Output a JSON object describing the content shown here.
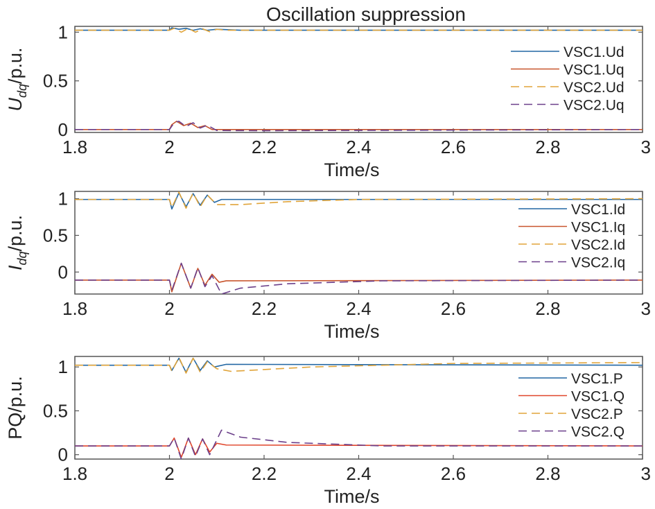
{
  "title": "Oscillation suppression",
  "colors": {
    "blue": "#2166a3",
    "orange": "#c8542c",
    "red": "#e0452a",
    "yellow": "#e0a43a",
    "purple": "#6b3f8a",
    "axis": "#555555"
  },
  "chart_data": [
    {
      "type": "line",
      "title": "Oscillation suppression",
      "xlabel": "Time/s",
      "ylabel_main": "U",
      "ylabel_sub": "dq",
      "ylabel_tail": "/p.u.",
      "xlim": [
        1.8,
        3.0
      ],
      "ylim": [
        -0.03,
        1.06
      ],
      "xticks": [
        "1.8",
        "2",
        "2.2",
        "2.4",
        "2.6",
        "2.8",
        "3"
      ],
      "yticks": [
        "0",
        "0.5",
        "1"
      ],
      "legend_position": "right",
      "series": [
        {
          "name": "VSC1.Ud",
          "color": "blue",
          "dash": "solid",
          "points": [
            [
              1.8,
              1.02
            ],
            [
              2.0,
              1.02
            ],
            [
              2.005,
              1.045
            ],
            [
              2.02,
              1.03
            ],
            [
              2.035,
              1.04
            ],
            [
              2.05,
              1.02
            ],
            [
              2.065,
              1.035
            ],
            [
              2.08,
              1.02
            ],
            [
              2.1,
              1.03
            ],
            [
              2.15,
              1.02
            ],
            [
              3.0,
              1.02
            ]
          ]
        },
        {
          "name": "VSC1.Uq",
          "color": "orange",
          "dash": "solid",
          "points": [
            [
              1.8,
              0.0
            ],
            [
              2.0,
              0.0
            ],
            [
              2.005,
              0.05
            ],
            [
              2.015,
              0.085
            ],
            [
              2.03,
              0.04
            ],
            [
              2.045,
              0.065
            ],
            [
              2.06,
              0.02
            ],
            [
              2.075,
              0.04
            ],
            [
              2.09,
              0.0
            ],
            [
              2.11,
              0.0
            ],
            [
              3.0,
              0.0
            ]
          ]
        },
        {
          "name": "VSC2.Ud",
          "color": "yellow",
          "dash": "dash",
          "points": [
            [
              1.8,
              1.02
            ],
            [
              2.0,
              1.02
            ],
            [
              2.01,
              1.04
            ],
            [
              2.025,
              1.0
            ],
            [
              2.04,
              1.04
            ],
            [
              2.055,
              1.0
            ],
            [
              2.07,
              1.035
            ],
            [
              2.085,
              1.005
            ],
            [
              2.1,
              1.03
            ],
            [
              2.12,
              1.02
            ],
            [
              3.0,
              1.02
            ]
          ]
        },
        {
          "name": "VSC2.Uq",
          "color": "purple",
          "dash": "dash",
          "points": [
            [
              1.8,
              0.0
            ],
            [
              2.0,
              0.0
            ],
            [
              2.01,
              0.07
            ],
            [
              2.02,
              0.085
            ],
            [
              2.035,
              0.03
            ],
            [
              2.05,
              0.07
            ],
            [
              2.065,
              0.015
            ],
            [
              2.08,
              0.045
            ],
            [
              2.1,
              -0.01
            ],
            [
              2.2,
              -0.012
            ],
            [
              3.0,
              0.0
            ]
          ]
        }
      ]
    },
    {
      "type": "line",
      "xlabel": "Time/s",
      "ylabel_main": "I",
      "ylabel_sub": "dq",
      "ylabel_tail": "/p.u.",
      "xlim": [
        1.8,
        3.0
      ],
      "ylim": [
        -0.3,
        1.1
      ],
      "xticks": [
        "1.8",
        "2",
        "2.2",
        "2.4",
        "2.6",
        "2.8",
        "3"
      ],
      "yticks": [
        "0",
        "0.5",
        "1"
      ],
      "legend_position": "right",
      "series": [
        {
          "name": "VSC1.Id",
          "color": "blue",
          "dash": "solid",
          "points": [
            [
              1.8,
              0.99
            ],
            [
              2.0,
              0.99
            ],
            [
              2.005,
              0.86
            ],
            [
              2.02,
              1.08
            ],
            [
              2.035,
              0.89
            ],
            [
              2.05,
              1.07
            ],
            [
              2.065,
              0.91
            ],
            [
              2.08,
              1.05
            ],
            [
              2.095,
              0.95
            ],
            [
              2.11,
              0.99
            ],
            [
              3.0,
              0.99
            ]
          ]
        },
        {
          "name": "VSC1.Iq",
          "color": "orange",
          "dash": "solid",
          "points": [
            [
              1.8,
              -0.11
            ],
            [
              2.0,
              -0.11
            ],
            [
              2.005,
              -0.27
            ],
            [
              2.025,
              0.12
            ],
            [
              2.045,
              -0.22
            ],
            [
              2.06,
              0.05
            ],
            [
              2.075,
              -0.18
            ],
            [
              2.09,
              -0.03
            ],
            [
              2.105,
              -0.14
            ],
            [
              2.12,
              -0.12
            ],
            [
              3.0,
              -0.11
            ]
          ]
        },
        {
          "name": "VSC2.Id",
          "color": "yellow",
          "dash": "dash",
          "points": [
            [
              1.8,
              0.99
            ],
            [
              2.0,
              0.99
            ],
            [
              2.005,
              0.88
            ],
            [
              2.02,
              1.09
            ],
            [
              2.035,
              0.87
            ],
            [
              2.05,
              1.08
            ],
            [
              2.065,
              0.89
            ],
            [
              2.08,
              1.05
            ],
            [
              2.1,
              0.92
            ],
            [
              2.15,
              0.92
            ],
            [
              2.25,
              0.96
            ],
            [
              2.4,
              0.99
            ],
            [
              3.0,
              1.0
            ]
          ]
        },
        {
          "name": "VSC2.Iq",
          "color": "purple",
          "dash": "dash",
          "points": [
            [
              1.8,
              -0.11
            ],
            [
              2.0,
              -0.11
            ],
            [
              2.005,
              -0.25
            ],
            [
              2.025,
              0.12
            ],
            [
              2.045,
              -0.22
            ],
            [
              2.06,
              0.06
            ],
            [
              2.075,
              -0.2
            ],
            [
              2.09,
              -0.05
            ],
            [
              2.11,
              -0.3
            ],
            [
              2.15,
              -0.22
            ],
            [
              2.25,
              -0.16
            ],
            [
              2.45,
              -0.12
            ],
            [
              3.0,
              -0.11
            ]
          ]
        }
      ]
    },
    {
      "type": "line",
      "xlabel": "Time/s",
      "ylabel_main": "PQ",
      "ylabel_sub": "",
      "ylabel_tail": "/p.u.",
      "xlim": [
        1.8,
        3.0
      ],
      "ylim": [
        -0.05,
        1.12
      ],
      "xticks": [
        "1.8",
        "2",
        "2.2",
        "2.4",
        "2.6",
        "2.8",
        "3"
      ],
      "yticks": [
        "0",
        "0.5",
        "1"
      ],
      "legend_position": "right",
      "series": [
        {
          "name": "VSC1.P",
          "color": "blue",
          "dash": "solid",
          "points": [
            [
              1.8,
              1.02
            ],
            [
              2.0,
              1.02
            ],
            [
              2.005,
              0.96
            ],
            [
              2.02,
              1.1
            ],
            [
              2.035,
              0.94
            ],
            [
              2.05,
              1.1
            ],
            [
              2.065,
              0.96
            ],
            [
              2.08,
              1.07
            ],
            [
              2.095,
              1.0
            ],
            [
              2.12,
              1.03
            ],
            [
              3.0,
              1.02
            ]
          ]
        },
        {
          "name": "VSC1.Q",
          "color": "red",
          "dash": "solid",
          "points": [
            [
              1.8,
              0.1
            ],
            [
              2.0,
              0.1
            ],
            [
              2.01,
              0.19
            ],
            [
              2.025,
              -0.03
            ],
            [
              2.04,
              0.19
            ],
            [
              2.055,
              0.0
            ],
            [
              2.07,
              0.18
            ],
            [
              2.085,
              0.03
            ],
            [
              2.1,
              0.13
            ],
            [
              2.12,
              0.11
            ],
            [
              3.0,
              0.1
            ]
          ]
        },
        {
          "name": "VSC2.P",
          "color": "yellow",
          "dash": "dash",
          "points": [
            [
              1.8,
              1.02
            ],
            [
              2.0,
              1.02
            ],
            [
              2.005,
              0.95
            ],
            [
              2.02,
              1.11
            ],
            [
              2.035,
              0.93
            ],
            [
              2.05,
              1.1
            ],
            [
              2.065,
              0.94
            ],
            [
              2.08,
              1.06
            ],
            [
              2.1,
              0.98
            ],
            [
              2.13,
              0.95
            ],
            [
              2.3,
              1.0
            ],
            [
              2.6,
              1.04
            ],
            [
              3.0,
              1.05
            ]
          ]
        },
        {
          "name": "VSC2.Q",
          "color": "purple",
          "dash": "dash",
          "points": [
            [
              1.8,
              0.1
            ],
            [
              2.0,
              0.1
            ],
            [
              2.01,
              0.19
            ],
            [
              2.025,
              -0.05
            ],
            [
              2.04,
              0.19
            ],
            [
              2.055,
              -0.02
            ],
            [
              2.07,
              0.18
            ],
            [
              2.085,
              0.0
            ],
            [
              2.11,
              0.28
            ],
            [
              2.15,
              0.2
            ],
            [
              2.25,
              0.14
            ],
            [
              2.45,
              0.1
            ],
            [
              3.0,
              0.1
            ]
          ]
        }
      ]
    }
  ]
}
